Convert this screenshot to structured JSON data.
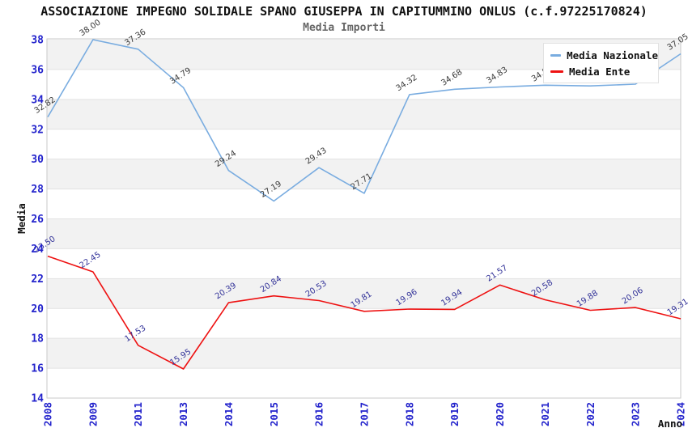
{
  "header": {
    "title": "ASSOCIAZIONE IMPEGNO SOLIDALE SPANO GIUSEPPA IN CAPITUMMINO ONLUS (c.f.97225170824)",
    "subtitle": "Media Importi"
  },
  "axes": {
    "y_title": "Media",
    "x_title": "Anno",
    "y_ticks": [
      14,
      16,
      18,
      20,
      22,
      24,
      26,
      28,
      30,
      32,
      34,
      36,
      38
    ],
    "bands": [
      [
        16,
        18
      ],
      [
        20,
        22
      ],
      [
        24,
        26
      ],
      [
        28,
        30
      ],
      [
        32,
        34
      ],
      [
        36,
        38
      ]
    ]
  },
  "legend": {
    "items": [
      {
        "label": "Media Nazionale",
        "series": "nazionale"
      },
      {
        "label": "Media Ente",
        "series": "ente"
      }
    ]
  },
  "colors": {
    "nazionale": "#79ACE0",
    "ente": "#EE1111",
    "tick_label": "#2323CC",
    "label_nazionale": "#3A3A3A",
    "label_ente": "#333399",
    "band": "#F2F2F2",
    "grid_line": "#E2E2E2",
    "plot_border": "#C9C9C9",
    "axis_title": "#111111"
  },
  "chart_data": {
    "type": "line",
    "title": "Media Importi",
    "xlabel": "Anno",
    "ylabel": "Media",
    "ylim": [
      14,
      38
    ],
    "grid": "horizontal-bands",
    "legend_position": "top-right",
    "categories": [
      "2008",
      "2009",
      "2011",
      "2013",
      "2014",
      "2015",
      "2016",
      "2017",
      "2018",
      "2019",
      "2020",
      "2021",
      "2022",
      "2023",
      "2024"
    ],
    "series": [
      {
        "name": "Media Nazionale",
        "key": "nazionale",
        "values": [
          32.82,
          38.0,
          37.36,
          34.79,
          29.24,
          27.19,
          29.43,
          27.71,
          34.32,
          34.68,
          34.83,
          34.95,
          34.9,
          35.02,
          37.05
        ],
        "point_labels": [
          "32.82",
          "38.00",
          "37.36",
          "34.79",
          "29.24",
          "27.19",
          "29.43",
          "27.71",
          "34.32",
          "34.68",
          "34.83",
          "34.95",
          "34.90",
          "35.02",
          "37.05"
        ]
      },
      {
        "name": "Media Ente",
        "key": "ente",
        "values": [
          23.5,
          22.45,
          17.53,
          15.95,
          20.39,
          20.84,
          20.53,
          19.81,
          19.96,
          19.94,
          21.57,
          20.58,
          19.88,
          20.06,
          19.31
        ],
        "point_labels": [
          "23.50",
          "22.45",
          "17.53",
          "15.95",
          "20.39",
          "20.84",
          "20.53",
          "19.81",
          "19.96",
          "19.94",
          "21.57",
          "20.58",
          "19.88",
          "20.06",
          "19.31"
        ]
      }
    ]
  }
}
